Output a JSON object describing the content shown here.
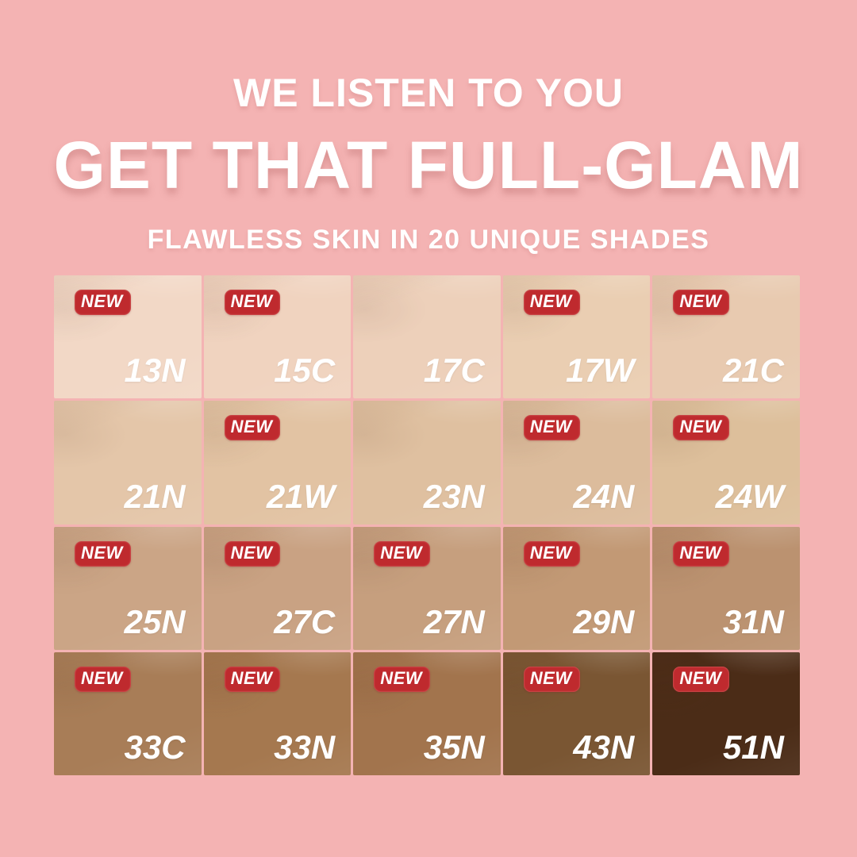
{
  "header": {
    "kicker": "WE LISTEN TO YOU",
    "title": "GET THAT FULL-GLAM",
    "subtitle": "FLAWLESS SKIN IN 20 UNIQUE SHADES"
  },
  "colors": {
    "background_pink": "#f4b3b3",
    "badge_red": "#bf2a2e",
    "text_white": "#ffffff"
  },
  "grid": {
    "columns": 5,
    "rows": 4,
    "new_badge_label": "NEW",
    "swatches": [
      {
        "shade": "13N",
        "color": "#f2d8c6",
        "new": true
      },
      {
        "shade": "15C",
        "color": "#f0d3bf",
        "new": true
      },
      {
        "shade": "17C",
        "color": "#edd0ba",
        "new": false
      },
      {
        "shade": "17W",
        "color": "#eaceb2",
        "new": true
      },
      {
        "shade": "21C",
        "color": "#e8cab0",
        "new": true
      },
      {
        "shade": "21N",
        "color": "#e4c6a9",
        "new": false
      },
      {
        "shade": "21W",
        "color": "#e2c3a3",
        "new": true
      },
      {
        "shade": "23N",
        "color": "#dfc0a0",
        "new": false
      },
      {
        "shade": "24N",
        "color": "#dcbc9c",
        "new": true
      },
      {
        "shade": "24W",
        "color": "#ddbf9b",
        "new": true
      },
      {
        "shade": "25N",
        "color": "#cba586",
        "new": true
      },
      {
        "shade": "27C",
        "color": "#c9a283",
        "new": true
      },
      {
        "shade": "27N",
        "color": "#c69f7e",
        "new": true
      },
      {
        "shade": "29N",
        "color": "#c29975",
        "new": true
      },
      {
        "shade": "31N",
        "color": "#bb9270",
        "new": true
      },
      {
        "shade": "33C",
        "color": "#a87d57",
        "new": true
      },
      {
        "shade": "33N",
        "color": "#a5784f",
        "new": true
      },
      {
        "shade": "35N",
        "color": "#a2744d",
        "new": true
      },
      {
        "shade": "43N",
        "color": "#7a5633",
        "new": true
      },
      {
        "shade": "51N",
        "color": "#4b2c17",
        "new": true
      }
    ]
  }
}
